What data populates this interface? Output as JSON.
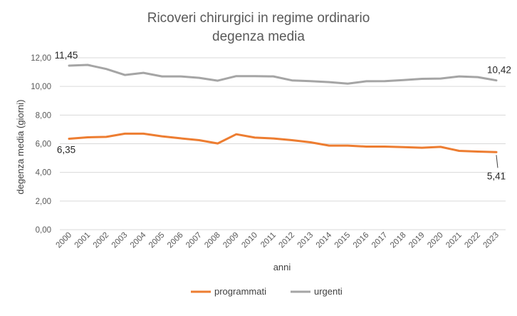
{
  "chart_data": {
    "type": "line",
    "title_line1": "Ricoveri chirurgici in regime ordinario",
    "title_line2": "degenza media",
    "xlabel": "anni",
    "ylabel": "degenza media (giorni)",
    "ylim": [
      0,
      12
    ],
    "y_ticks": [
      "0,00",
      "2,00",
      "4,00",
      "6,00",
      "8,00",
      "10,00",
      "12,00"
    ],
    "grid": "horizontal",
    "legend_position": "bottom",
    "categories": [
      "2000",
      "2001",
      "2002",
      "2003",
      "2004",
      "2005",
      "2006",
      "2007",
      "2008",
      "2009",
      "2010",
      "2011",
      "2012",
      "2013",
      "2014",
      "2015",
      "2016",
      "2017",
      "2018",
      "2019",
      "2020",
      "2021",
      "2022",
      "2023"
    ],
    "series": [
      {
        "name": "programmati",
        "color": "#ed7d31",
        "values": [
          6.35,
          6.45,
          6.48,
          6.7,
          6.7,
          6.52,
          6.38,
          6.25,
          6.02,
          6.66,
          6.43,
          6.37,
          6.25,
          6.1,
          5.87,
          5.87,
          5.8,
          5.8,
          5.76,
          5.72,
          5.78,
          5.5,
          5.45,
          5.41
        ]
      },
      {
        "name": "urgenti",
        "color": "#a5a5a5",
        "values": [
          11.45,
          11.5,
          11.22,
          10.8,
          10.95,
          10.7,
          10.7,
          10.6,
          10.4,
          10.72,
          10.72,
          10.7,
          10.42,
          10.37,
          10.3,
          10.2,
          10.36,
          10.37,
          10.44,
          10.53,
          10.55,
          10.7,
          10.65,
          10.42
        ]
      }
    ],
    "data_labels": [
      {
        "series": 1,
        "index": 0,
        "text": "11,45"
      },
      {
        "series": 1,
        "index": 23,
        "text": "10,42"
      },
      {
        "series": 0,
        "index": 0,
        "text": "6,35"
      },
      {
        "series": 0,
        "index": 23,
        "text": "5,41"
      }
    ]
  }
}
